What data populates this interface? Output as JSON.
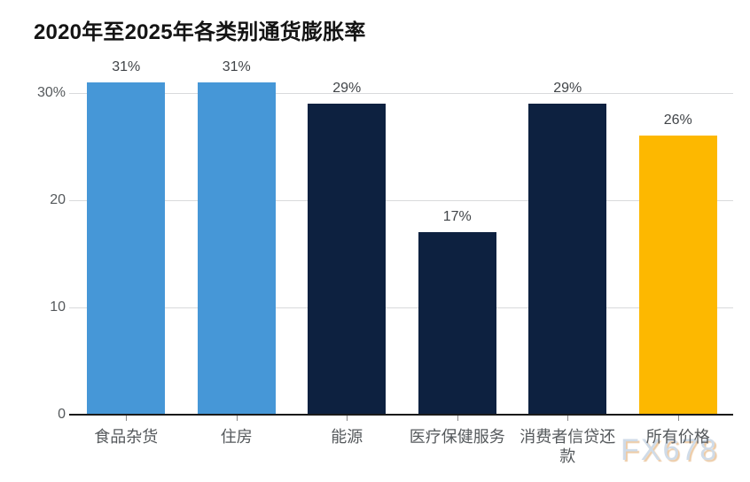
{
  "title": "2020年至2025年各类别通货膨胀率",
  "watermark": "FX678",
  "colors": {
    "bar_blue": "#4697d7",
    "bar_navy": "#0d2140",
    "bar_orange": "#fdb800",
    "gridline": "#d9dadc",
    "axis_line": "#1a1a1a",
    "tick_label_text": "#55595c",
    "value_label_text": "#404448",
    "title_text": "#141414",
    "watermark_fill": "#cfdbe8",
    "watermark_shadow": "#edcba6"
  },
  "chart_data": {
    "type": "bar",
    "title": "2020年至2025年各类别通货膨胀率",
    "categories": [
      "食品杂货",
      "住房",
      "能源",
      "医疗保健服务",
      "消费者信贷还款",
      "所有价格"
    ],
    "values": [
      31,
      31,
      29,
      17,
      29,
      26
    ],
    "value_labels": [
      "31%",
      "31%",
      "29%",
      "17%",
      "29%",
      "26%"
    ],
    "bar_colors": [
      "#4697d7",
      "#4697d7",
      "#0d2140",
      "#0d2140",
      "#0d2140",
      "#fdb800"
    ],
    "xlabel": "",
    "ylabel": "",
    "ylim": [
      0,
      32
    ],
    "y_ticks": [
      {
        "value": 0,
        "label": "0"
      },
      {
        "value": 10,
        "label": "10"
      },
      {
        "value": 20,
        "label": "20"
      },
      {
        "value": 30,
        "label": "30%"
      }
    ],
    "grid": "horizontal-only",
    "legend": "none",
    "watermark": "FX678"
  }
}
